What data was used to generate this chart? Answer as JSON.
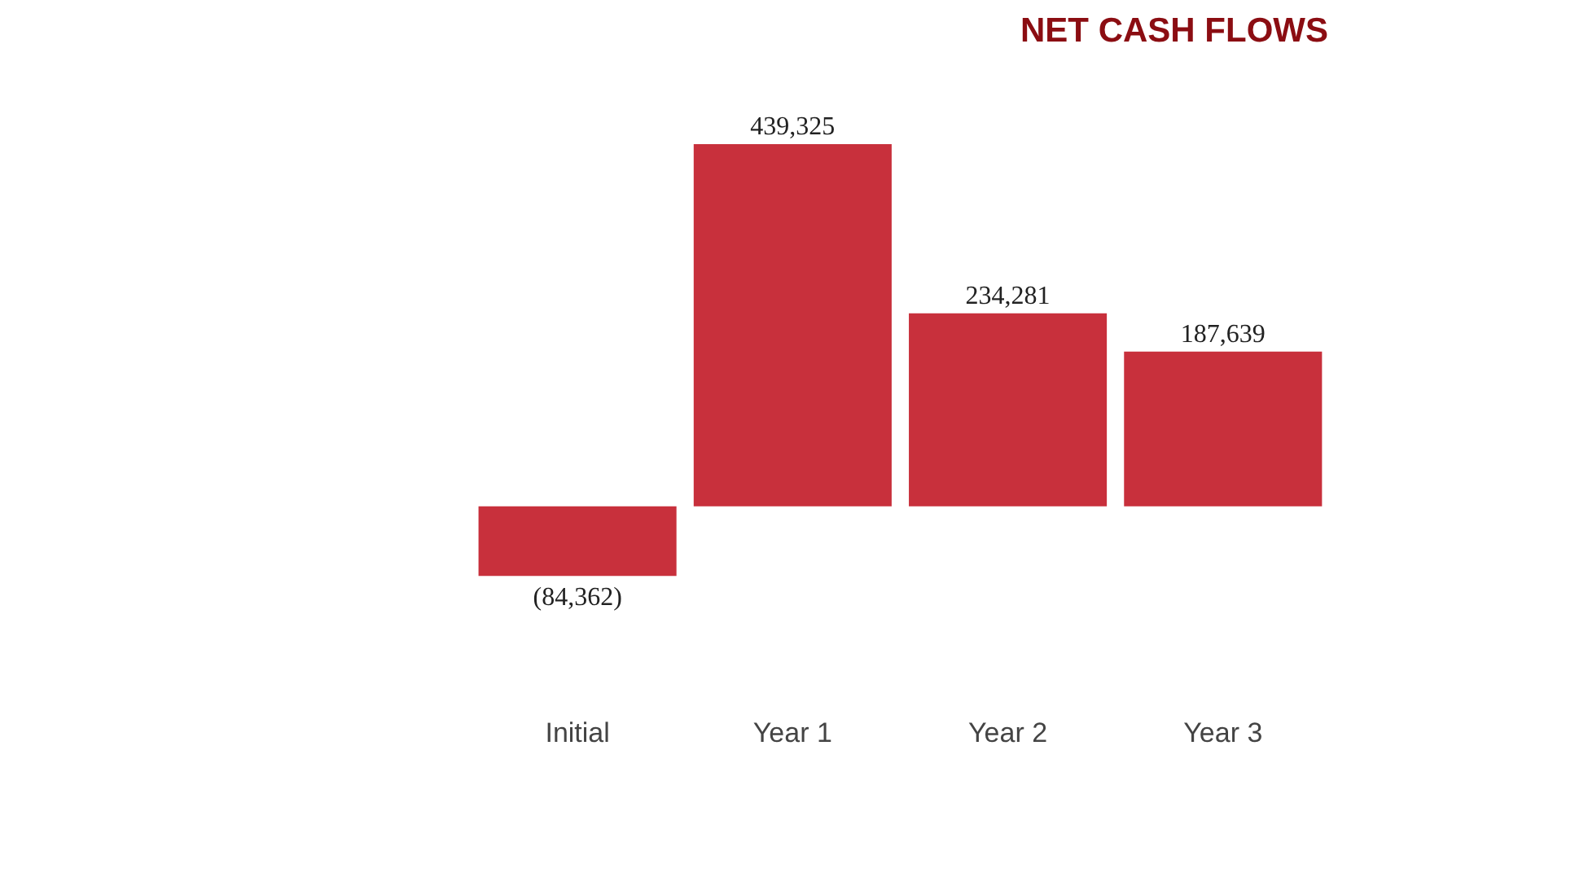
{
  "chart_data": {
    "type": "bar",
    "title": "NET CASH FLOWS",
    "categories": [
      "Initial",
      "Year 1",
      "Year 2",
      "Year 3"
    ],
    "values": [
      -84362,
      439325,
      234281,
      187639
    ],
    "value_labels": [
      "(84,362)",
      "439,325",
      "234,281",
      "187,639"
    ],
    "color": "#c8303c",
    "grid": false
  }
}
